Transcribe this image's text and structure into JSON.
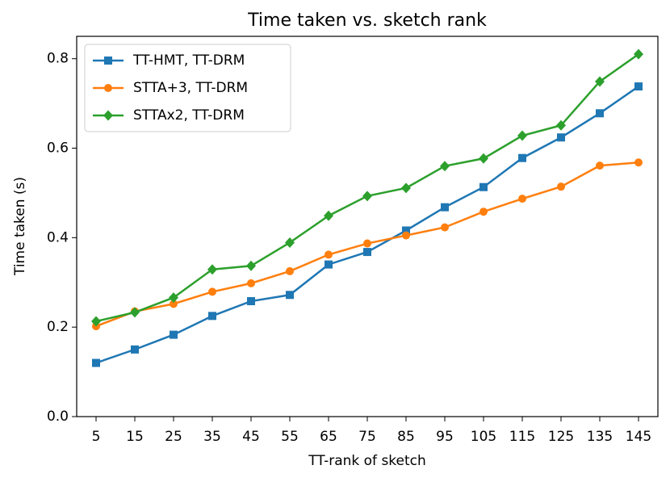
{
  "chart_data": {
    "type": "line",
    "title": "Time taken vs. sketch rank",
    "xlabel": "TT-rank of sketch",
    "ylabel": "Time taken (s)",
    "categories": [
      "5",
      "15",
      "25",
      "35",
      "45",
      "55",
      "65",
      "75",
      "85",
      "95",
      "105",
      "115",
      "125",
      "135",
      "145"
    ],
    "series": [
      {
        "name": "TT-HMT, TT-DRM",
        "color": "#1f77b4",
        "marker": "square",
        "values": [
          0.12,
          0.15,
          0.183,
          0.225,
          0.258,
          0.272,
          0.34,
          0.368,
          0.416,
          0.468,
          0.513,
          0.578,
          0.624,
          0.678,
          0.738
        ]
      },
      {
        "name": "STTA+3, TT-DRM",
        "color": "#ff7f0e",
        "marker": "circle",
        "values": [
          0.202,
          0.235,
          0.252,
          0.279,
          0.298,
          0.325,
          0.362,
          0.387,
          0.405,
          0.423,
          0.458,
          0.487,
          0.514,
          0.561,
          0.568
        ]
      },
      {
        "name": "STTAx2, TT-DRM",
        "color": "#2ca02c",
        "marker": "diamond",
        "values": [
          0.213,
          0.233,
          0.266,
          0.329,
          0.337,
          0.389,
          0.449,
          0.493,
          0.511,
          0.56,
          0.577,
          0.628,
          0.651,
          0.749,
          0.81
        ]
      }
    ],
    "ylim": [
      0,
      0.85
    ],
    "yticks": [
      {
        "value": 0,
        "label": "0.0"
      },
      0.2,
      0.4,
      0.6,
      0.8
    ],
    "grid": false,
    "legend": "upper left"
  }
}
